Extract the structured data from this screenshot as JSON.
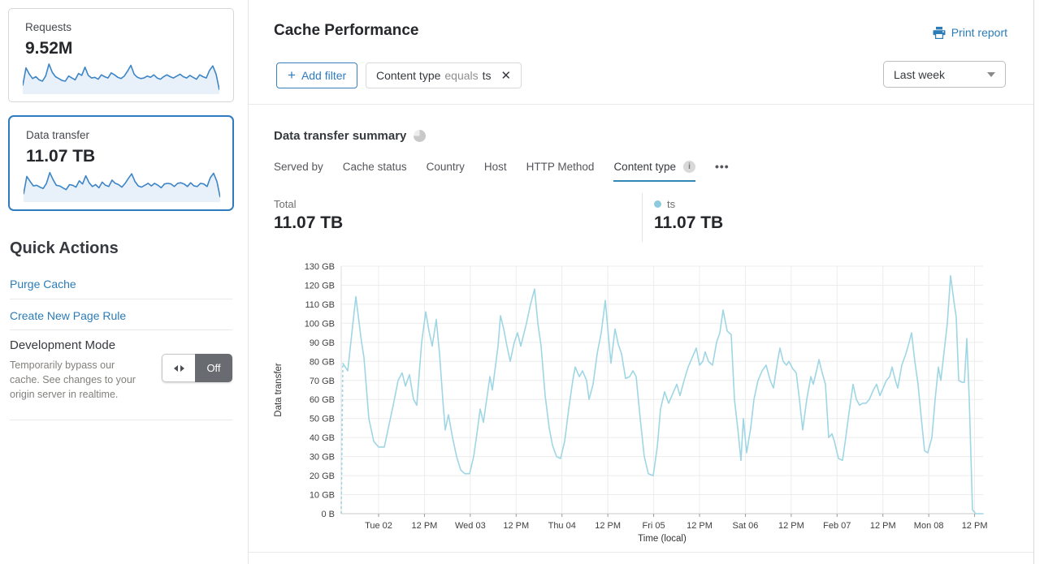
{
  "colors": {
    "accent_blue": "#2c7cb7",
    "selected_card_border": "#2f7bbf",
    "chart_line": "#9fd6e4",
    "legend_dot": "#8ccadd",
    "spark_line": "#3d85c6",
    "spark_fill": "#e8f1f9",
    "tab_underline": "#3187b5",
    "toggle_off_bg": "#686c70"
  },
  "icons": {
    "plus": "+",
    "close": "✕",
    "ellipsis": "•••",
    "info": "i"
  },
  "sidebar": {
    "cards": [
      {
        "label": "Requests",
        "value": "9.52M",
        "spark": [
          22,
          78,
          58,
          44,
          50,
          40,
          36,
          52,
          90,
          64,
          50,
          44,
          38,
          36,
          52,
          46,
          40,
          60,
          54,
          80,
          54,
          46,
          48,
          42,
          56,
          50,
          46,
          62,
          56,
          48,
          44,
          52,
          68,
          86,
          58,
          48,
          44,
          46,
          52,
          48,
          56,
          46,
          42,
          50,
          56,
          50,
          46,
          52,
          58,
          50,
          46,
          54,
          48,
          42,
          56,
          50,
          46,
          70,
          84,
          58,
          8
        ]
      },
      {
        "label": "Data transfer",
        "value": "11.07 TB",
        "spark": [
          20,
          76,
          60,
          46,
          48,
          42,
          38,
          54,
          88,
          66,
          48,
          46,
          40,
          34,
          50,
          48,
          42,
          62,
          52,
          78,
          56,
          44,
          50,
          40,
          58,
          48,
          44,
          64,
          54,
          50,
          42,
          54,
          70,
          84,
          60,
          46,
          42,
          48,
          54,
          46,
          54,
          48,
          40,
          52,
          54,
          52,
          44,
          54,
          56,
          52,
          44,
          56,
          46,
          44,
          54,
          52,
          44,
          72,
          86,
          60,
          10
        ]
      }
    ],
    "quick_actions": {
      "title": "Quick Actions",
      "links": [
        {
          "label": "Purge Cache"
        },
        {
          "label": "Create New Page Rule"
        }
      ],
      "dev_mode": {
        "title": "Development Mode",
        "description": "Temporarily bypass our cache. See changes to your origin server in realtime.",
        "toggle_label": "Off"
      }
    }
  },
  "header": {
    "title": "Cache Performance",
    "print_label": "Print report",
    "add_filter_label": "Add filter",
    "filter_chip": {
      "field": "Content type",
      "operator": "equals",
      "value": "ts"
    },
    "time_range": "Last week"
  },
  "summary": {
    "title": "Data transfer summary",
    "tabs": [
      "Served by",
      "Cache status",
      "Country",
      "Host",
      "HTTP Method",
      "Content type"
    ],
    "active_tab": "Content type",
    "total_label": "Total",
    "total_value": "11.07 TB",
    "series_label": "ts",
    "series_value": "11.07 TB"
  },
  "chart_data": {
    "type": "line",
    "title": "Data transfer summary",
    "xlabel": "Time (local)",
    "ylabel": "Data transfer",
    "ylim": [
      0,
      130
    ],
    "y_unit": "GB",
    "y_ticks": [
      "0 B",
      "10 GB",
      "20 GB",
      "30 GB",
      "40 GB",
      "50 GB",
      "60 GB",
      "70 GB",
      "80 GB",
      "90 GB",
      "100 GB",
      "110 GB",
      "120 GB",
      "130 GB"
    ],
    "x_ticks": [
      "Tue 02",
      "12 PM",
      "Wed 03",
      "12 PM",
      "Thu 04",
      "12 PM",
      "Fri 05",
      "12 PM",
      "Sat 06",
      "12 PM",
      "Feb 07",
      "12 PM",
      "Mon 08",
      "12 PM"
    ],
    "x_tick_interval_hours": 12,
    "grid": true,
    "legend_position": "above-right",
    "leading_dashed_from_zero": true,
    "series": [
      {
        "name": "ts",
        "total": "11.07 TB",
        "color": "#9fd6e4",
        "points": [
          [
            0,
            0
          ],
          [
            2,
            79
          ],
          [
            8,
            75
          ],
          [
            18,
            114
          ],
          [
            25,
            90
          ],
          [
            28,
            82
          ],
          [
            34,
            50
          ],
          [
            40,
            38
          ],
          [
            46,
            35
          ],
          [
            53,
            35
          ],
          [
            58,
            45
          ],
          [
            64,
            57
          ],
          [
            70,
            70
          ],
          [
            75,
            74
          ],
          [
            79,
            67
          ],
          [
            84,
            73
          ],
          [
            89,
            60
          ],
          [
            93,
            57
          ],
          [
            99,
            90
          ],
          [
            104,
            106
          ],
          [
            108,
            96
          ],
          [
            112,
            88
          ],
          [
            117,
            102
          ],
          [
            121,
            84
          ],
          [
            125,
            60
          ],
          [
            128,
            44
          ],
          [
            132,
            52
          ],
          [
            137,
            40
          ],
          [
            142,
            30
          ],
          [
            147,
            23
          ],
          [
            152,
            21
          ],
          [
            158,
            21
          ],
          [
            163,
            30
          ],
          [
            167,
            42
          ],
          [
            171,
            55
          ],
          [
            175,
            48
          ],
          [
            179,
            60
          ],
          [
            183,
            72
          ],
          [
            186,
            65
          ],
          [
            190,
            78
          ],
          [
            193,
            88
          ],
          [
            196,
            104
          ],
          [
            200,
            97
          ],
          [
            204,
            88
          ],
          [
            208,
            80
          ],
          [
            213,
            90
          ],
          [
            217,
            95
          ],
          [
            221,
            88
          ],
          [
            228,
            100
          ],
          [
            233,
            110
          ],
          [
            238,
            118
          ],
          [
            242,
            100
          ],
          [
            246,
            88
          ],
          [
            251,
            62
          ],
          [
            256,
            45
          ],
          [
            260,
            36
          ],
          [
            265,
            30
          ],
          [
            270,
            29
          ],
          [
            275,
            38
          ],
          [
            280,
            55
          ],
          [
            285,
            70
          ],
          [
            288,
            77
          ],
          [
            293,
            72
          ],
          [
            297,
            75
          ],
          [
            302,
            70
          ],
          [
            305,
            60
          ],
          [
            310,
            68
          ],
          [
            315,
            84
          ],
          [
            320,
            95
          ],
          [
            325,
            112
          ],
          [
            330,
            88
          ],
          [
            332,
            79
          ],
          [
            337,
            97
          ],
          [
            341,
            89
          ],
          [
            345,
            84
          ],
          [
            350,
            71
          ],
          [
            355,
            72
          ],
          [
            359,
            75
          ],
          [
            363,
            72
          ],
          [
            368,
            50
          ],
          [
            373,
            30
          ],
          [
            378,
            21
          ],
          [
            384,
            20
          ],
          [
            389,
            35
          ],
          [
            393,
            55
          ],
          [
            398,
            64
          ],
          [
            403,
            58
          ],
          [
            408,
            63
          ],
          [
            413,
            68
          ],
          [
            417,
            62
          ],
          [
            422,
            70
          ],
          [
            427,
            77
          ],
          [
            432,
            82
          ],
          [
            437,
            87
          ],
          [
            441,
            78
          ],
          [
            445,
            80
          ],
          [
            448,
            85
          ],
          [
            452,
            80
          ],
          [
            457,
            78
          ],
          [
            462,
            90
          ],
          [
            466,
            95
          ],
          [
            470,
            107
          ],
          [
            475,
            96
          ],
          [
            480,
            94
          ],
          [
            484,
            60
          ],
          [
            488,
            45
          ],
          [
            492,
            28
          ],
          [
            495,
            50
          ],
          [
            499,
            32
          ],
          [
            504,
            45
          ],
          [
            508,
            60
          ],
          [
            513,
            70
          ],
          [
            518,
            75
          ],
          [
            523,
            78
          ],
          [
            528,
            70
          ],
          [
            532,
            66
          ],
          [
            537,
            80
          ],
          [
            540,
            87
          ],
          [
            544,
            80
          ],
          [
            548,
            78
          ],
          [
            551,
            80
          ],
          [
            556,
            76
          ],
          [
            560,
            74
          ],
          [
            564,
            60
          ],
          [
            568,
            44
          ],
          [
            573,
            60
          ],
          [
            578,
            72
          ],
          [
            581,
            68
          ],
          [
            585,
            75
          ],
          [
            588,
            81
          ],
          [
            592,
            74
          ],
          [
            596,
            68
          ],
          [
            600,
            40
          ],
          [
            604,
            42
          ],
          [
            607,
            38
          ],
          [
            612,
            29
          ],
          [
            617,
            28
          ],
          [
            621,
            40
          ],
          [
            625,
            53
          ],
          [
            630,
            68
          ],
          [
            634,
            60
          ],
          [
            638,
            57
          ],
          [
            642,
            58
          ],
          [
            646,
            58
          ],
          [
            650,
            60
          ],
          [
            655,
            65
          ],
          [
            659,
            68
          ],
          [
            663,
            62
          ],
          [
            667,
            66
          ],
          [
            671,
            70
          ],
          [
            675,
            72
          ],
          [
            678,
            77
          ],
          [
            682,
            70
          ],
          [
            685,
            66
          ],
          [
            690,
            78
          ],
          [
            695,
            84
          ],
          [
            699,
            90
          ],
          [
            702,
            95
          ],
          [
            706,
            80
          ],
          [
            710,
            68
          ],
          [
            714,
            50
          ],
          [
            718,
            33
          ],
          [
            722,
            32
          ],
          [
            727,
            40
          ],
          [
            731,
            60
          ],
          [
            735,
            77
          ],
          [
            738,
            70
          ],
          [
            742,
            85
          ],
          [
            746,
            100
          ],
          [
            750,
            125
          ],
          [
            754,
            112
          ],
          [
            757,
            103
          ],
          [
            760,
            70
          ],
          [
            764,
            69
          ],
          [
            767,
            69
          ],
          [
            770,
            92
          ],
          [
            773,
            60
          ],
          [
            777,
            2
          ],
          [
            781,
            0
          ],
          [
            790,
            0
          ]
        ]
      }
    ]
  }
}
